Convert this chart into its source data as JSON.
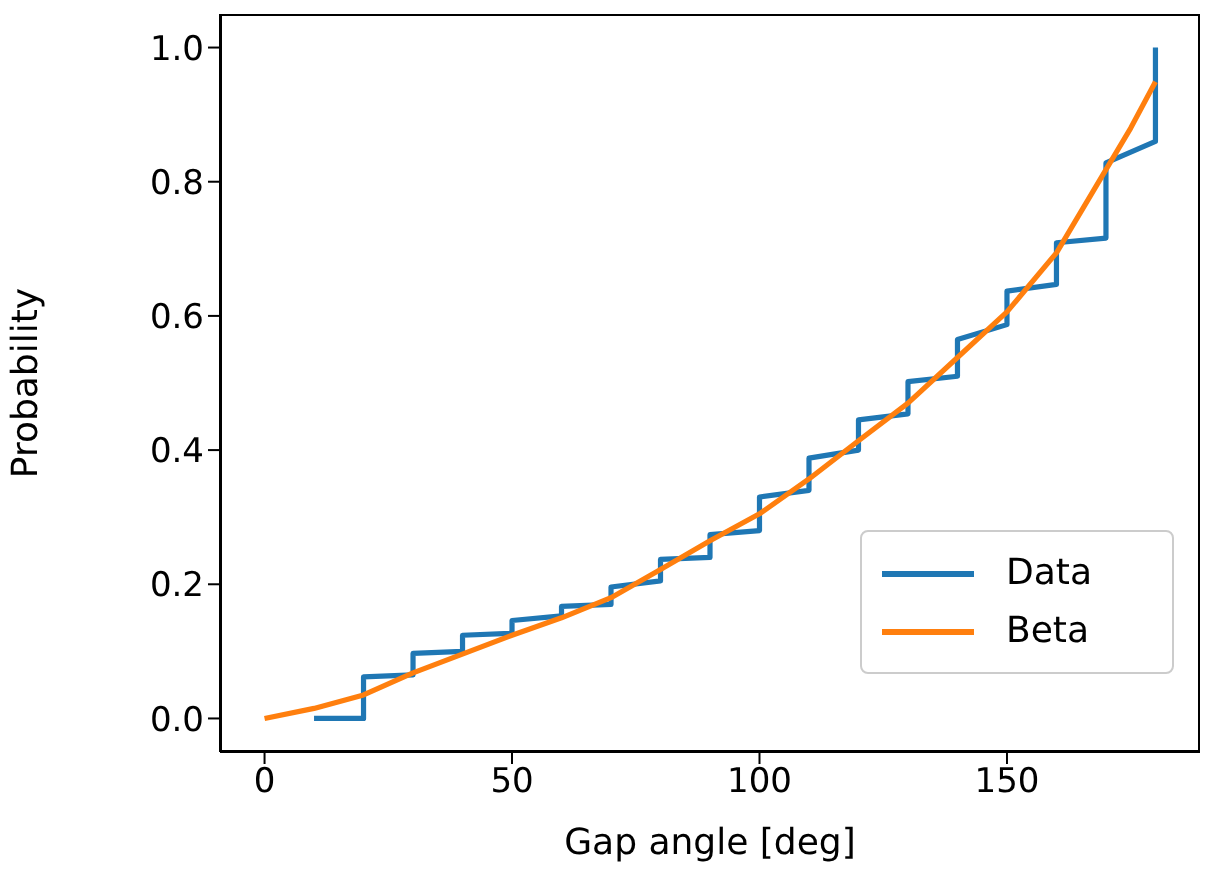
{
  "chart_data": {
    "type": "line",
    "xlabel": "Gap angle [deg]",
    "ylabel": "Probability",
    "xlim": [
      -9,
      189
    ],
    "xticks": [
      0,
      50,
      100,
      150
    ],
    "ylim": [
      -0.05,
      1.05
    ],
    "yticks": [
      {
        "value": 0,
        "label": "0.0"
      },
      {
        "value": 0.2,
        "label": "0.2"
      },
      {
        "value": 0.4,
        "label": "0.4"
      },
      {
        "value": 0.6,
        "label": "0.6"
      },
      {
        "value": 0.8,
        "label": "0.8"
      },
      {
        "value": 1.0,
        "label": "1.0"
      }
    ],
    "legend": "bottom right",
    "marker": "none",
    "line_style": "solid",
    "series": [
      {
        "name": "Data",
        "color": "#1f77b4",
        "x": [
          10,
          20,
          20,
          30,
          30,
          40,
          40,
          50,
          50,
          60,
          60,
          70,
          70,
          80,
          80,
          90,
          90,
          100,
          100,
          110,
          110,
          120,
          120,
          130,
          130,
          140,
          140,
          150,
          150,
          160,
          160,
          170,
          170,
          180,
          180
        ],
        "values": [
          0,
          0,
          0.062,
          0.065,
          0.097,
          0.1,
          0.124,
          0.127,
          0.146,
          0.153,
          0.167,
          0.17,
          0.196,
          0.205,
          0.237,
          0.24,
          0.274,
          0.28,
          0.33,
          0.34,
          0.388,
          0.4,
          0.445,
          0.454,
          0.502,
          0.51,
          0.565,
          0.587,
          0.637,
          0.647,
          0.709,
          0.716,
          0.828,
          0.86,
          1.0
        ]
      },
      {
        "name": "Beta",
        "color": "#ff7f0e",
        "x": [
          0,
          10,
          20,
          30,
          50,
          60,
          70,
          80,
          90,
          100,
          110,
          120,
          130,
          140,
          150,
          160,
          170,
          175,
          180
        ],
        "values": [
          0,
          0.015,
          0.035,
          0.068,
          0.124,
          0.15,
          0.18,
          0.222,
          0.265,
          0.305,
          0.357,
          0.414,
          0.47,
          0.538,
          0.606,
          0.694,
          0.818,
          0.88,
          0.949
        ]
      }
    ]
  }
}
